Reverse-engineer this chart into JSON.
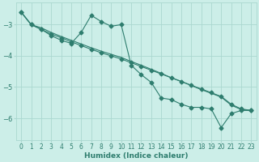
{
  "title": "",
  "xlabel": "Humidex (Indice chaleur)",
  "ylabel": "",
  "background_color": "#cceee8",
  "grid_color": "#aad8d0",
  "line_color": "#2e7d6e",
  "xlim": [
    -0.5,
    23.5
  ],
  "ylim": [
    -6.7,
    -2.3
  ],
  "yticks": [
    -6,
    -5,
    -4,
    -3
  ],
  "xticks": [
    0,
    1,
    2,
    3,
    4,
    5,
    6,
    7,
    8,
    9,
    10,
    11,
    12,
    13,
    14,
    15,
    16,
    17,
    18,
    19,
    20,
    21,
    22,
    23
  ],
  "series_data_x": [
    0,
    1,
    2,
    3,
    4,
    5,
    6,
    7,
    8,
    9,
    10,
    11,
    12,
    13,
    14,
    15,
    16,
    17,
    18,
    19,
    20,
    21,
    22,
    23
  ],
  "series_data_y": [
    -2.6,
    -3.0,
    -3.15,
    -3.35,
    -3.5,
    -3.6,
    -3.25,
    -2.7,
    -2.9,
    -3.05,
    -3.0,
    -4.3,
    -4.6,
    -4.85,
    -5.35,
    -5.4,
    -5.55,
    -5.65,
    -5.65,
    -5.7,
    -6.3,
    -5.85,
    -5.75,
    -5.75
  ],
  "series_reg1_x": [
    0,
    1,
    2,
    3,
    4,
    5,
    6,
    7,
    8,
    9,
    10,
    11,
    12,
    13,
    14,
    15,
    16,
    17,
    18,
    19,
    20,
    21,
    22,
    23
  ],
  "series_reg1_y": [
    -2.6,
    -3.0,
    -3.15,
    -3.3,
    -3.42,
    -3.55,
    -3.67,
    -3.79,
    -3.9,
    -4.0,
    -4.1,
    -4.22,
    -4.34,
    -4.46,
    -4.58,
    -4.7,
    -4.82,
    -4.94,
    -5.06,
    -5.18,
    -5.3,
    -5.55,
    -5.7,
    -5.75
  ],
  "series_reg2_x": [
    0,
    1,
    2,
    3,
    4,
    5,
    6,
    7,
    8,
    9,
    10,
    11,
    12,
    13,
    14,
    15,
    16,
    17,
    18,
    19,
    20,
    21,
    22,
    23
  ],
  "series_reg2_y": [
    -2.6,
    -3.0,
    -3.1,
    -3.25,
    -3.38,
    -3.5,
    -3.62,
    -3.74,
    -3.85,
    -3.95,
    -4.05,
    -4.18,
    -4.3,
    -4.43,
    -4.56,
    -4.7,
    -4.82,
    -4.95,
    -5.08,
    -5.2,
    -5.32,
    -5.58,
    -5.72,
    -5.75
  ],
  "marker_size": 2.5,
  "line_width": 0.8,
  "xlabel_color": "#2e7d6e",
  "xlabel_fontsize": 6.5,
  "tick_fontsize": 5.5
}
